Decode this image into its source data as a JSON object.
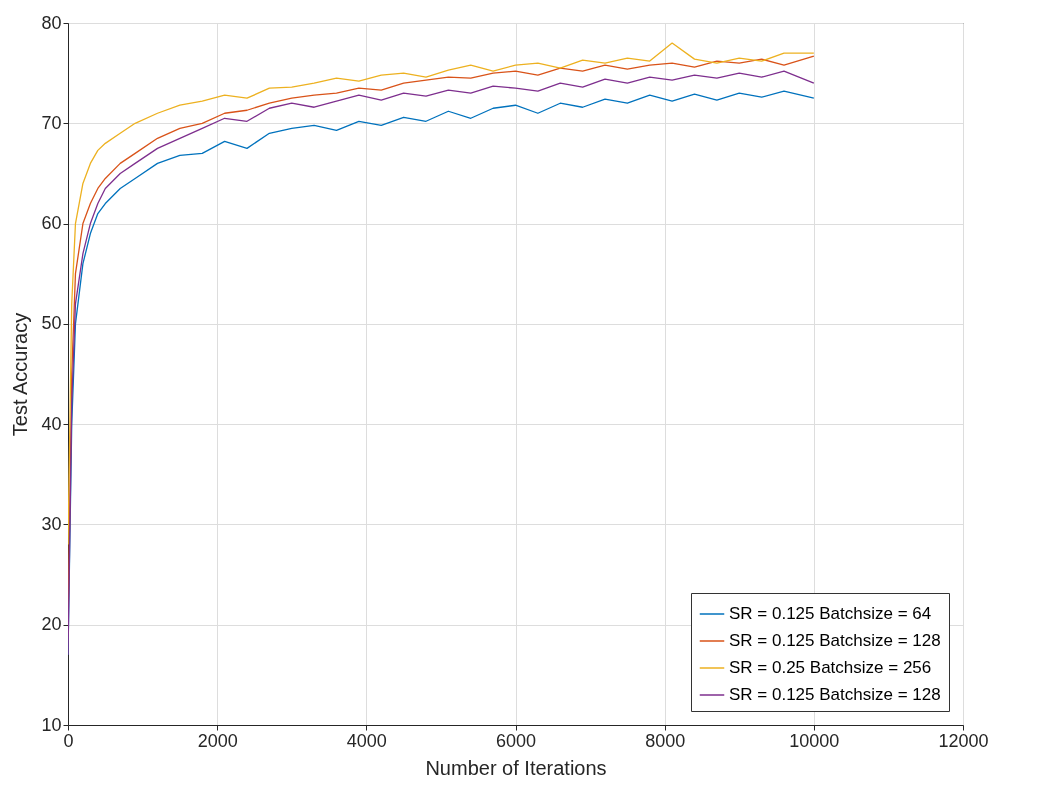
{
  "chart_data": {
    "type": "line",
    "xlabel": "Number of Iterations",
    "ylabel": "Test Accuracy",
    "x": [
      0,
      50,
      100,
      200,
      300,
      400,
      500,
      700,
      900,
      1200,
      1500,
      1800,
      2100,
      2400,
      2700,
      3000,
      3300,
      3600,
      3900,
      4200,
      4500,
      4800,
      5100,
      5400,
      5700,
      6000,
      6300,
      6600,
      6900,
      7200,
      7500,
      7800,
      8100,
      8400,
      8700,
      9000,
      9300,
      9600,
      10000
    ],
    "series": [
      {
        "name": "SR = 0.125 Batchsize = 64",
        "color": "#0072bd",
        "values": [
          17,
          40,
          50,
          56,
          59,
          61,
          62,
          63.5,
          64.5,
          66,
          66.8,
          67,
          68.2,
          67.5,
          69,
          69.5,
          69.8,
          69.3,
          70.2,
          69.8,
          70.6,
          70.2,
          71.2,
          70.5,
          71.5,
          71.8,
          71,
          72,
          71.6,
          72.4,
          72,
          72.8,
          72.2,
          72.9,
          72.3,
          73,
          72.6,
          73.2,
          72.5
        ]
      },
      {
        "name": "SR = 0.125 Batchsize = 128",
        "color": "#d95319",
        "values": [
          20,
          45,
          55,
          60,
          62,
          63.5,
          64.5,
          66,
          67,
          68.5,
          69.5,
          70,
          71,
          71.3,
          72,
          72.5,
          72.8,
          73,
          73.5,
          73.3,
          74,
          74.3,
          74.6,
          74.5,
          75,
          75.2,
          74.8,
          75.5,
          75.2,
          75.8,
          75.4,
          75.8,
          76,
          75.6,
          76.2,
          76,
          76.4,
          75.8,
          76.7
        ]
      },
      {
        "name": "SR = 0.25 Batchsize = 256",
        "color": "#edb120",
        "values": [
          28,
          52,
          60,
          64,
          66,
          67.3,
          68,
          69,
          70,
          71,
          71.8,
          72.2,
          72.8,
          72.5,
          73.5,
          73.6,
          74,
          74.5,
          74.2,
          74.8,
          75,
          74.6,
          75.3,
          75.8,
          75.2,
          75.8,
          76,
          75.5,
          76.3,
          76,
          76.5,
          76.2,
          78,
          76.4,
          76,
          76.5,
          76.2,
          77,
          77
        ]
      },
      {
        "name": "SR = 0.125 Batchsize = 128",
        "color": "#7e2f8e",
        "values": [
          17,
          42,
          52,
          57,
          60,
          62,
          63.5,
          65,
          66,
          67.5,
          68.5,
          69.5,
          70.5,
          70.2,
          71.5,
          72,
          71.6,
          72.2,
          72.8,
          72.3,
          73,
          72.7,
          73.3,
          73,
          73.7,
          73.5,
          73.2,
          74,
          73.6,
          74.4,
          74,
          74.6,
          74.3,
          74.8,
          74.5,
          75,
          74.6,
          75.2,
          74
        ]
      }
    ],
    "xlim": [
      0,
      12000
    ],
    "xticks": [
      0,
      2000,
      4000,
      6000,
      8000,
      10000,
      12000
    ],
    "ylim": [
      10,
      80
    ],
    "yticks": [
      10,
      20,
      30,
      40,
      50,
      60,
      70,
      80
    ],
    "grid": true,
    "legend": "bottom right"
  }
}
